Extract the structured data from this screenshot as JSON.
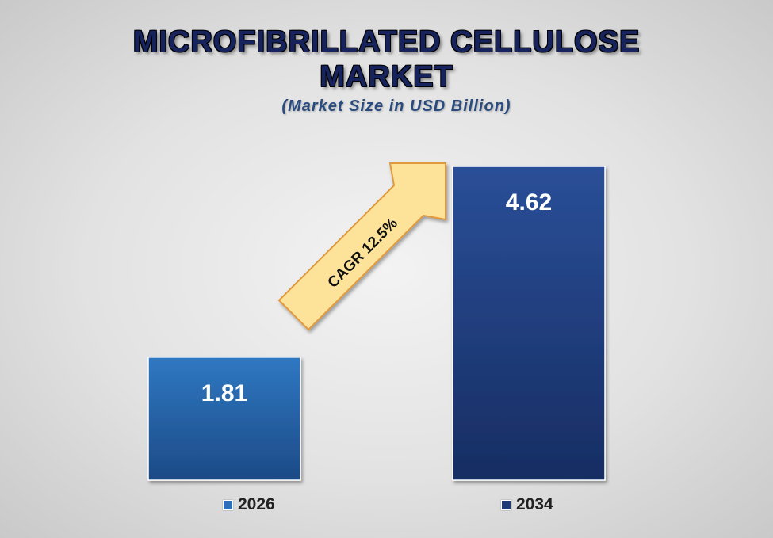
{
  "title_line1": "MICROFIBRILLATED CELLULOSE",
  "title_line2": "MARKET",
  "subtitle": "(Market Size in USD Billion)",
  "annotation": "CAGR 12.5%",
  "colors": {
    "title": "#17235c",
    "subtitle": "#2a4b7e",
    "bar_2026": "#2e6fba",
    "bar_2034": "#1f3b78",
    "arrow_fill": "#fde39a",
    "arrow_stroke": "#e09a3c"
  },
  "chart_data": {
    "type": "bar",
    "categories": [
      "2026",
      "2034"
    ],
    "values": [
      1.81,
      4.62
    ],
    "value_labels": [
      "1.81",
      "4.62"
    ],
    "title": "MICROFIBRILLATED CELLULOSE MARKET",
    "subtitle": "(Market Size in USD Billion)",
    "xlabel": "",
    "ylabel": "",
    "ylim": [
      0,
      4.62
    ],
    "grid": false,
    "legend": "bottom",
    "annotation": "CAGR 12.5%"
  }
}
